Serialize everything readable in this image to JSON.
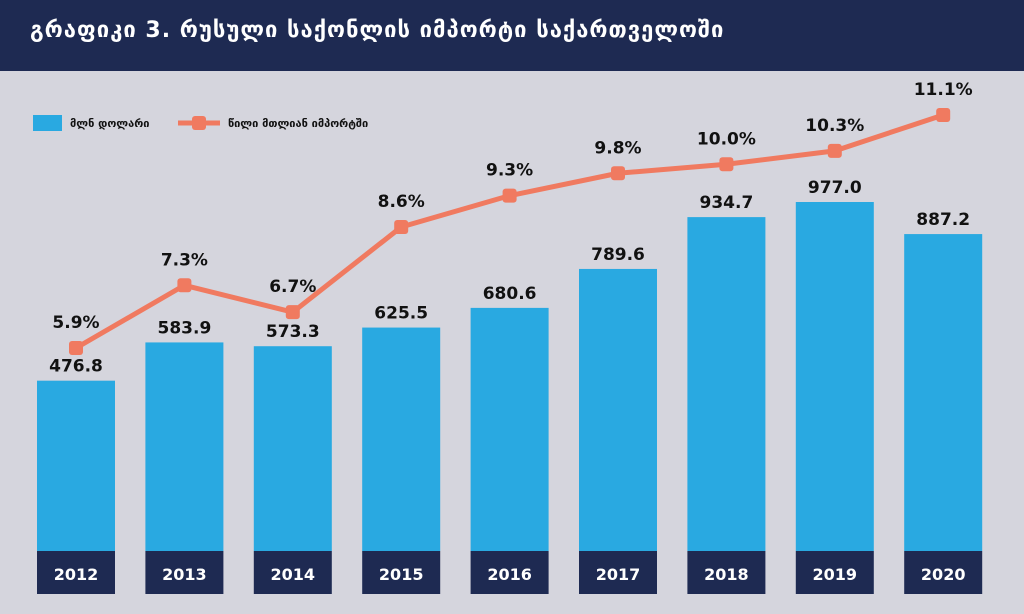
{
  "chart_data": {
    "type": "bar",
    "title": "გრაფიკი 3. რუსული საქონლის იმპორტი საქართველოში",
    "categories": [
      "2012",
      "2013",
      "2014",
      "2015",
      "2016",
      "2017",
      "2018",
      "2019",
      "2020"
    ],
    "series": [
      {
        "name": "მლნ დოლარი",
        "type": "bar",
        "color": "#29a9e1",
        "values": [
          476.8,
          583.9,
          573.3,
          625.5,
          680.6,
          789.6,
          934.7,
          977.0,
          887.2
        ],
        "labels": [
          "476.8",
          "583.9",
          "573.3",
          "625.5",
          "680.6",
          "789.6",
          "934.7",
          "977.0",
          "887.2"
        ]
      },
      {
        "name": "წილი მთლიან იმპორტში",
        "type": "line",
        "color": "#f07a60",
        "values": [
          5.9,
          7.3,
          6.7,
          8.6,
          9.3,
          9.8,
          10.0,
          10.3,
          11.1
        ],
        "labels": [
          "5.9%",
          "7.3%",
          "6.7%",
          "8.6%",
          "9.3%",
          "9.8%",
          "10.0%",
          "10.3%",
          "11.1%"
        ]
      }
    ],
    "legend": "top-left",
    "grid": false
  }
}
